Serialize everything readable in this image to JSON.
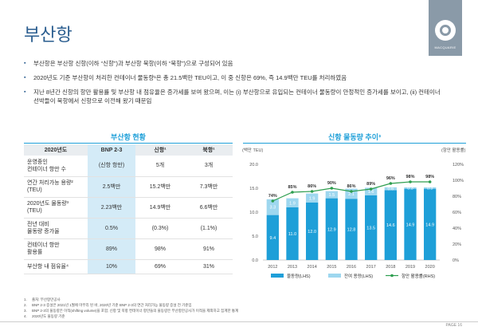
{
  "slide": {
    "title": "부산항",
    "page": "PAGE 16",
    "brand": "MACQUARIE"
  },
  "bullets": [
    "부산항은 부산항 신항(이하 “신항”)과 부산항 북항(이하 “북항”)으로 구성되어 있음",
    "2020년도 기준 부산항이 처리한 컨테이너 물동량¹은 총 21.5백만 TEU이고, 이 중 신항은 69%, 즉 14.9백만 TEU를 처리하였음",
    "지난 8년간 신항의 항만 활용률 및 부산항 내 점유율은 증가세를 보여 왔으며, 이는 (i) 부산항으로 유입되는 컨테이너 물동량이 안정적인 증가세를 보이고, (ii) 컨테이너 선박들이 북항에서 신항으로 이전해 왔기 때문임"
  ],
  "table": {
    "title": "부산항 현황",
    "headers": [
      "2020년도",
      "BNP 2-3",
      "신항¹",
      "북항¹"
    ],
    "rows": [
      [
        "운영중인\n컨테이너 항만 수",
        "(신항 항만)",
        "5개",
        "3개"
      ],
      [
        "연간 처리가능 용량²\n(TEU)",
        "2.5백만",
        "15.2백만",
        "7.3백만"
      ],
      [
        "2020년도 물동량³\n(TEU)",
        "2.23백만",
        "14.9백만",
        "6.6백만"
      ],
      [
        "전년 대비\n물동량 증가율",
        "0.5%",
        "(0.3%)",
        "(1.1%)"
      ],
      [
        "컨테이너 항만\n활용률",
        "89%",
        "98%",
        "91%"
      ],
      [
        "부산항 내 점유율⁴",
        "10%",
        "69%",
        "31%"
      ]
    ]
  },
  "chart_data": {
    "type": "bar",
    "title": "신항 물동량 추이³",
    "ylabel_left": "(백만 TEU)",
    "ylabel_right": "(항만 활용률)",
    "categories": [
      "2012",
      "2013",
      "2014",
      "2015",
      "2016",
      "2017",
      "2018",
      "2019",
      "2020"
    ],
    "ylim_left": [
      0,
      20
    ],
    "yticks_left": [
      "0.0",
      "5.0",
      "10.0",
      "15.0",
      "20.0"
    ],
    "ylim_right": [
      0,
      120
    ],
    "yticks_right": [
      "0%",
      "20%",
      "40%",
      "60%",
      "80%",
      "100%",
      "120%"
    ],
    "series": [
      {
        "name": "물동량(LHS)",
        "type": "bar",
        "color": "#1e9fd8",
        "values": [
          9.4,
          11.0,
          12.0,
          12.9,
          12.8,
          13.5,
          14.6,
          14.9,
          14.9
        ],
        "labels": [
          "9.4",
          "11.0",
          "12.0",
          "12.9",
          "12.8",
          "13.5",
          "14.6",
          "14.9",
          "14.9"
        ]
      },
      {
        "name": "잔여 용량(LHS)",
        "type": "bar",
        "color": "#9ed7ef",
        "values": [
          3.3,
          1.9,
          1.9,
          1.5,
          2.1,
          1.6,
          0.6,
          0.3,
          0.3
        ],
        "labels": [
          "3.3",
          "1.9",
          "1.9",
          "1.5",
          "2.1",
          "1.6",
          "0.6",
          "0.3",
          "0.3"
        ]
      },
      {
        "name": "항만 활용률(RHS)",
        "type": "line",
        "color": "#2e9e4f",
        "values": [
          74,
          85,
          86,
          90,
          86,
          89,
          96,
          98,
          98
        ],
        "labels": [
          "74%",
          "85%",
          "86%",
          "90%",
          "86%",
          "89%",
          "96%",
          "98%",
          "98%"
        ]
      }
    ]
  },
  "footnotes": [
    [
      "1.",
      "출처: 부산항만공사"
    ],
    [
      "2.",
      "BNP 2-3 증설은 2021년 1월에 마무리 된 바, 2020년 기준 BNP 2-3의 연간 처리가능 물동량 증설 전 기준임"
    ],
    [
      "3.",
      "BNP 2-3의 물동량은 이적(shifting volume)을 포함, 신항 및 북항 컨테이너 항만들의 물동량은 부산항만공사가 이적을 제외하고 집계한 통계"
    ],
    [
      "4.",
      "2020년도 물동량 기준"
    ]
  ]
}
